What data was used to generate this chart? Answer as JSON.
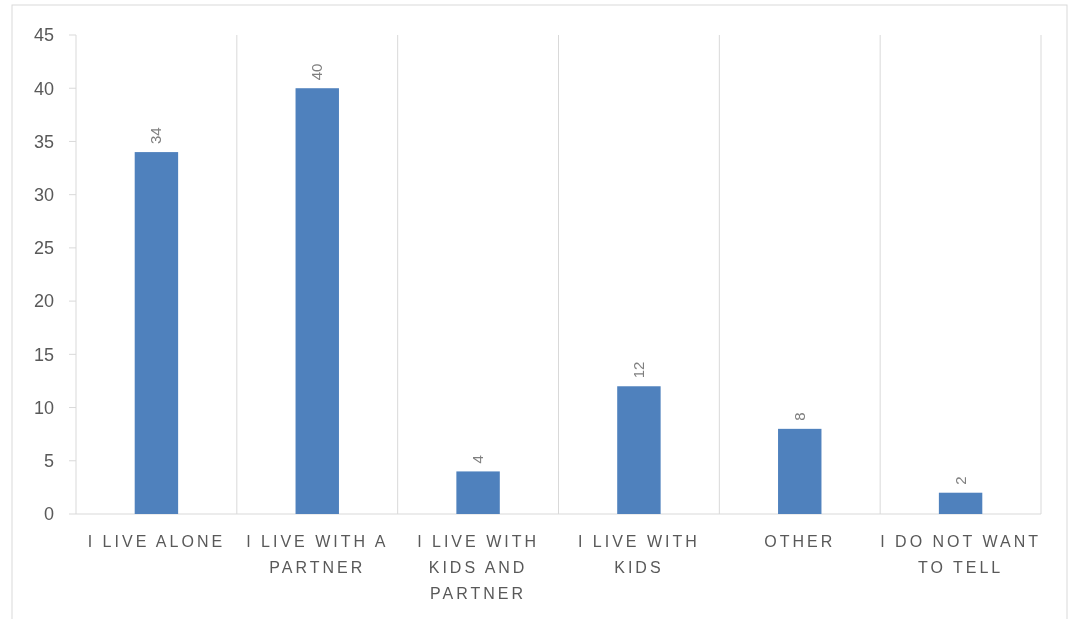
{
  "chart_data": {
    "type": "bar",
    "categories": [
      "I LIVE ALONE",
      "I LIVE WITH A PARTNER",
      "I LIVE WITH KIDS AND PARTNER",
      "I LIVE WITH KIDS",
      "OTHER",
      "I DO NOT WANT TO TELL"
    ],
    "values": [
      34,
      40,
      4,
      12,
      8,
      2
    ],
    "color": "#4f81bd",
    "ylim": [
      0,
      45
    ],
    "yticks": [
      0,
      5,
      10,
      15,
      20,
      25,
      30,
      35,
      40,
      45
    ],
    "grid": "x",
    "data_labels": true
  }
}
